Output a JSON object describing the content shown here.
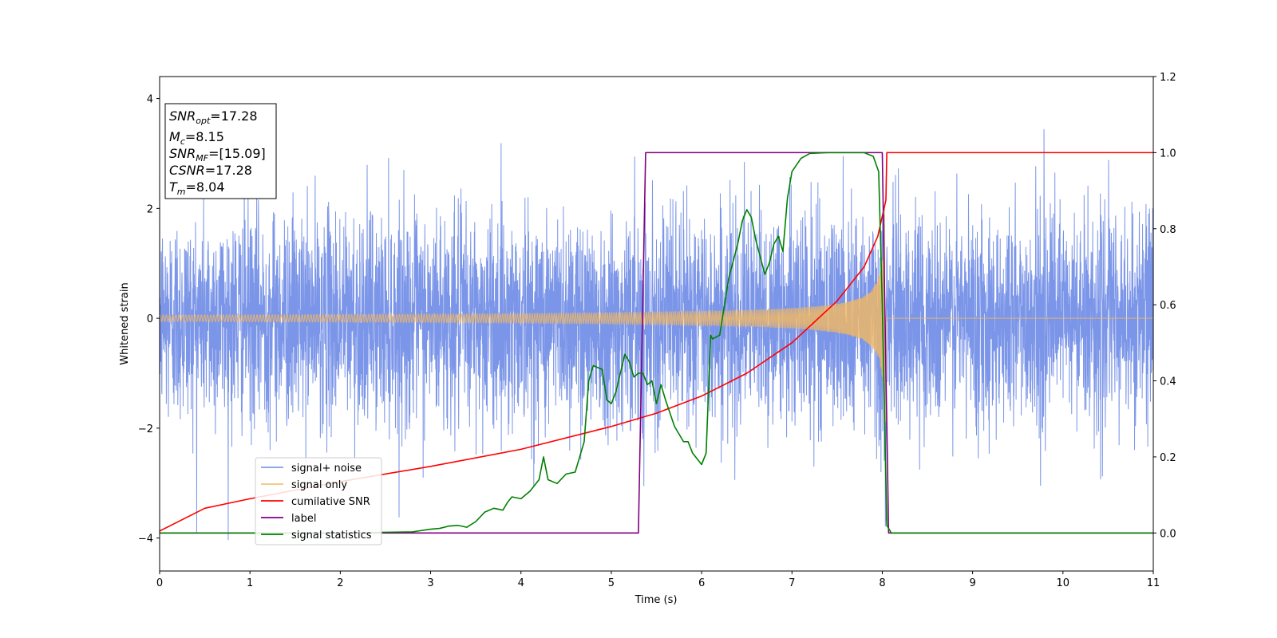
{
  "chart_data": {
    "type": "line",
    "xlabel": "Time (s)",
    "ylabel": "Whitened strain",
    "xlim": [
      0,
      11
    ],
    "ylim_left": [
      -4.6,
      4.4
    ],
    "ylim_right": [
      -0.1,
      1.2
    ],
    "xticks": [
      "0",
      "1",
      "2",
      "3",
      "4",
      "5",
      "6",
      "7",
      "8",
      "9",
      "10",
      "11"
    ],
    "yticks_left": [
      "4",
      "2",
      "0",
      "−2",
      "−4"
    ],
    "yticks_left_values": [
      4,
      2,
      0,
      -2,
      -4
    ],
    "yticks_right": [
      "1.2",
      "1.0",
      "0.8",
      "0.6",
      "0.4",
      "0.2",
      "0.0"
    ],
    "yticks_right_values": [
      1.2,
      1.0,
      0.8,
      0.6,
      0.4,
      0.2,
      0.0
    ],
    "legend_position": "lower-left",
    "series": [
      {
        "name": "signal+ noise",
        "color": "#6d8ae6",
        "axis": "left",
        "std": 0.95,
        "description_range": [
          -4.1,
          4.0
        ]
      },
      {
        "name": "signal only",
        "color": "#f4b860",
        "axis": "left",
        "chirp_start_amp": 0.06,
        "chirp_end_amp": 2.0,
        "merger_time": 8.04
      },
      {
        "name": "cumilative SNR",
        "color": "#ff0000",
        "axis": "right",
        "x": [
          0,
          0.5,
          1,
          2,
          3,
          4,
          5,
          5.5,
          6,
          6.5,
          7,
          7.5,
          7.8,
          7.95,
          8.04,
          8.05,
          11
        ],
        "y": [
          0.005,
          0.065,
          0.09,
          0.135,
          0.175,
          0.22,
          0.28,
          0.315,
          0.36,
          0.42,
          0.5,
          0.61,
          0.7,
          0.78,
          0.875,
          1.0,
          1.0
        ]
      },
      {
        "name": "label",
        "color": "#800080",
        "axis": "right",
        "x": [
          0,
          5.3,
          5.38,
          8.0,
          8.07,
          11
        ],
        "y": [
          0.0,
          0.0,
          1.0,
          1.0,
          0.0,
          0.0
        ]
      },
      {
        "name": "signal statistics",
        "color": "#008000",
        "axis": "right",
        "x": [
          0,
          1,
          2,
          2.8,
          3.0,
          3.1,
          3.2,
          3.3,
          3.4,
          3.5,
          3.6,
          3.7,
          3.8,
          3.85,
          3.9,
          4.0,
          4.1,
          4.2,
          4.25,
          4.3,
          4.4,
          4.5,
          4.6,
          4.65,
          4.7,
          4.75,
          4.8,
          4.9,
          4.95,
          5.0,
          5.05,
          5.1,
          5.15,
          5.2,
          5.25,
          5.3,
          5.35,
          5.4,
          5.45,
          5.5,
          5.55,
          5.6,
          5.7,
          5.8,
          5.85,
          5.9,
          6.0,
          6.05,
          6.1,
          6.12,
          6.2,
          6.3,
          6.4,
          6.45,
          6.5,
          6.55,
          6.6,
          6.7,
          6.75,
          6.8,
          6.85,
          6.9,
          6.95,
          7.0,
          7.1,
          7.2,
          7.4,
          7.6,
          7.8,
          7.9,
          7.96,
          8.0,
          8.05,
          8.1,
          8.15,
          9,
          10,
          11
        ],
        "y": [
          0.0,
          0.0,
          0.0,
          0.003,
          0.01,
          0.012,
          0.018,
          0.02,
          0.015,
          0.03,
          0.055,
          0.065,
          0.06,
          0.08,
          0.095,
          0.09,
          0.11,
          0.14,
          0.2,
          0.14,
          0.13,
          0.155,
          0.16,
          0.2,
          0.24,
          0.4,
          0.44,
          0.43,
          0.35,
          0.34,
          0.37,
          0.42,
          0.47,
          0.45,
          0.41,
          0.42,
          0.42,
          0.39,
          0.4,
          0.34,
          0.39,
          0.35,
          0.28,
          0.24,
          0.24,
          0.21,
          0.18,
          0.21,
          0.52,
          0.51,
          0.52,
          0.67,
          0.76,
          0.82,
          0.85,
          0.83,
          0.77,
          0.68,
          0.71,
          0.76,
          0.78,
          0.74,
          0.88,
          0.95,
          0.985,
          0.998,
          1.0,
          1.0,
          1.0,
          0.99,
          0.95,
          0.6,
          0.02,
          0.0,
          0.0,
          0.0,
          0.0,
          0.0
        ]
      }
    ],
    "annotation": {
      "lines": [
        {
          "sym": "SNR",
          "sub": "opt",
          "value": "=17.28"
        },
        {
          "sym": "M",
          "sub": "c",
          "value": "=8.15"
        },
        {
          "sym": "SNR",
          "sub": "MF",
          "value": "=[15.09]"
        },
        {
          "sym": "CSNR",
          "sub": "",
          "value": "=17.28"
        },
        {
          "sym": "T",
          "sub": "m",
          "value": "=8.04"
        }
      ]
    }
  }
}
